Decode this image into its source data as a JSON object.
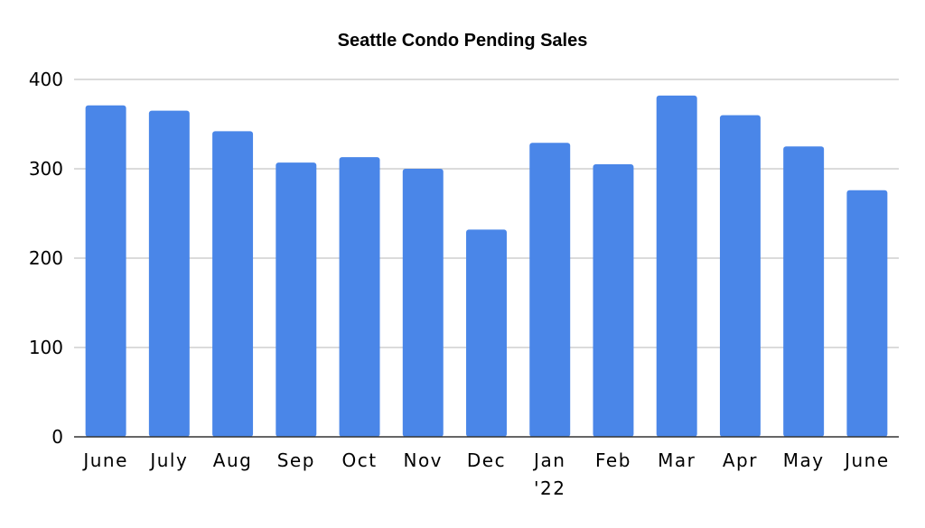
{
  "chart_data": {
    "type": "bar",
    "title": "Seattle Condo Pending Sales",
    "xlabel": "",
    "ylabel": "",
    "categories": [
      "June",
      "July",
      "Aug",
      "Sep",
      "Oct",
      "Nov",
      "Dec",
      "Jan\n'22",
      "Feb",
      "Mar",
      "Apr",
      "May",
      "June"
    ],
    "values": [
      371,
      365,
      342,
      307,
      313,
      300,
      232,
      329,
      305,
      382,
      360,
      325,
      276
    ],
    "ylim": [
      0,
      400
    ],
    "yticks": [
      0,
      100,
      200,
      300,
      400
    ],
    "grid": true,
    "legend": "none",
    "bar_color": "#4a86e8"
  }
}
